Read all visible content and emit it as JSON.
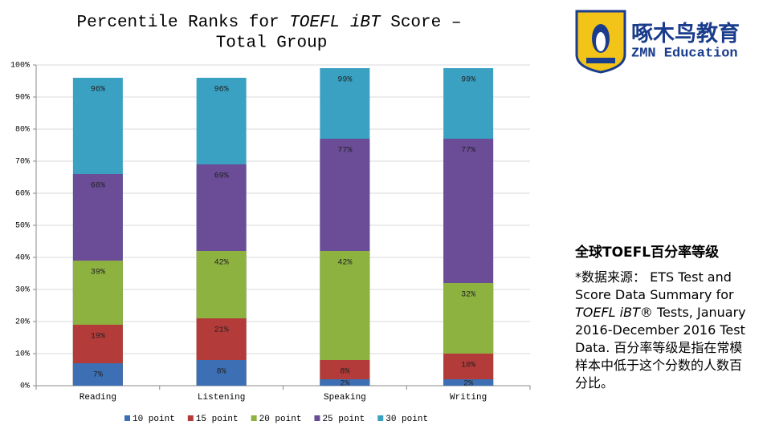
{
  "chart_data": {
    "type": "bar",
    "title": {
      "line1": [
        "Percentile Ranks for ",
        "TOEFL iBT",
        " Score –"
      ],
      "line2": "Total Group"
    },
    "categories": [
      "Reading",
      "Listening",
      "Speaking",
      "Writing"
    ],
    "series": [
      {
        "name": "10 point",
        "color": "#3d6fb4",
        "values": [
          7,
          8,
          2,
          2
        ],
        "value_labels": [
          "7%",
          "8%",
          "2%",
          "2%"
        ]
      },
      {
        "name": "15 point",
        "color": "#b33c3a",
        "values": [
          19,
          21,
          8,
          10
        ],
        "value_labels": [
          "19%",
          "21%",
          "8%",
          "10%"
        ]
      },
      {
        "name": "20 point",
        "color": "#8eb240",
        "values": [
          39,
          42,
          42,
          32
        ],
        "value_labels": [
          "39%",
          "42%",
          "42%",
          "32%"
        ]
      },
      {
        "name": "25 point",
        "color": "#6b4c97",
        "values": [
          66,
          69,
          77,
          77
        ],
        "value_labels": [
          "66%",
          "69%",
          "77%",
          "77%"
        ]
      },
      {
        "name": "30 point",
        "color": "#3aa1c2",
        "values": [
          96,
          96,
          99,
          99
        ],
        "value_labels": [
          "96%",
          "96%",
          "99%",
          "99%"
        ]
      }
    ],
    "ylim": [
      0,
      100
    ],
    "yticks": [
      {
        "value": 0,
        "label": "0%"
      },
      {
        "value": 10,
        "label": "10%"
      },
      {
        "value": 20,
        "label": "20%"
      },
      {
        "value": 30,
        "label": "30%"
      },
      {
        "value": 40,
        "label": "40%"
      },
      {
        "value": 50,
        "label": "50%"
      },
      {
        "value": 60,
        "label": "60%"
      },
      {
        "value": 70,
        "label": "70%"
      },
      {
        "value": 80,
        "label": "80%"
      },
      {
        "value": 90,
        "label": "90%"
      },
      {
        "value": 100,
        "label": "100%"
      }
    ],
    "grid": true,
    "legend": "bottom"
  },
  "logo": {
    "name": "啄木鸟教育",
    "subtitle": "ZMN Education"
  },
  "note": {
    "heading": "全球TOEFL百分率等级",
    "body": [
      "*数据来源： ETS Test and Score Data Summary for ",
      "TOEFL iBT®",
      " Tests, January 2016-December 2016 Test Data. 百分率等级是指在常模样本中低于这个分数的人数百分比。"
    ]
  }
}
